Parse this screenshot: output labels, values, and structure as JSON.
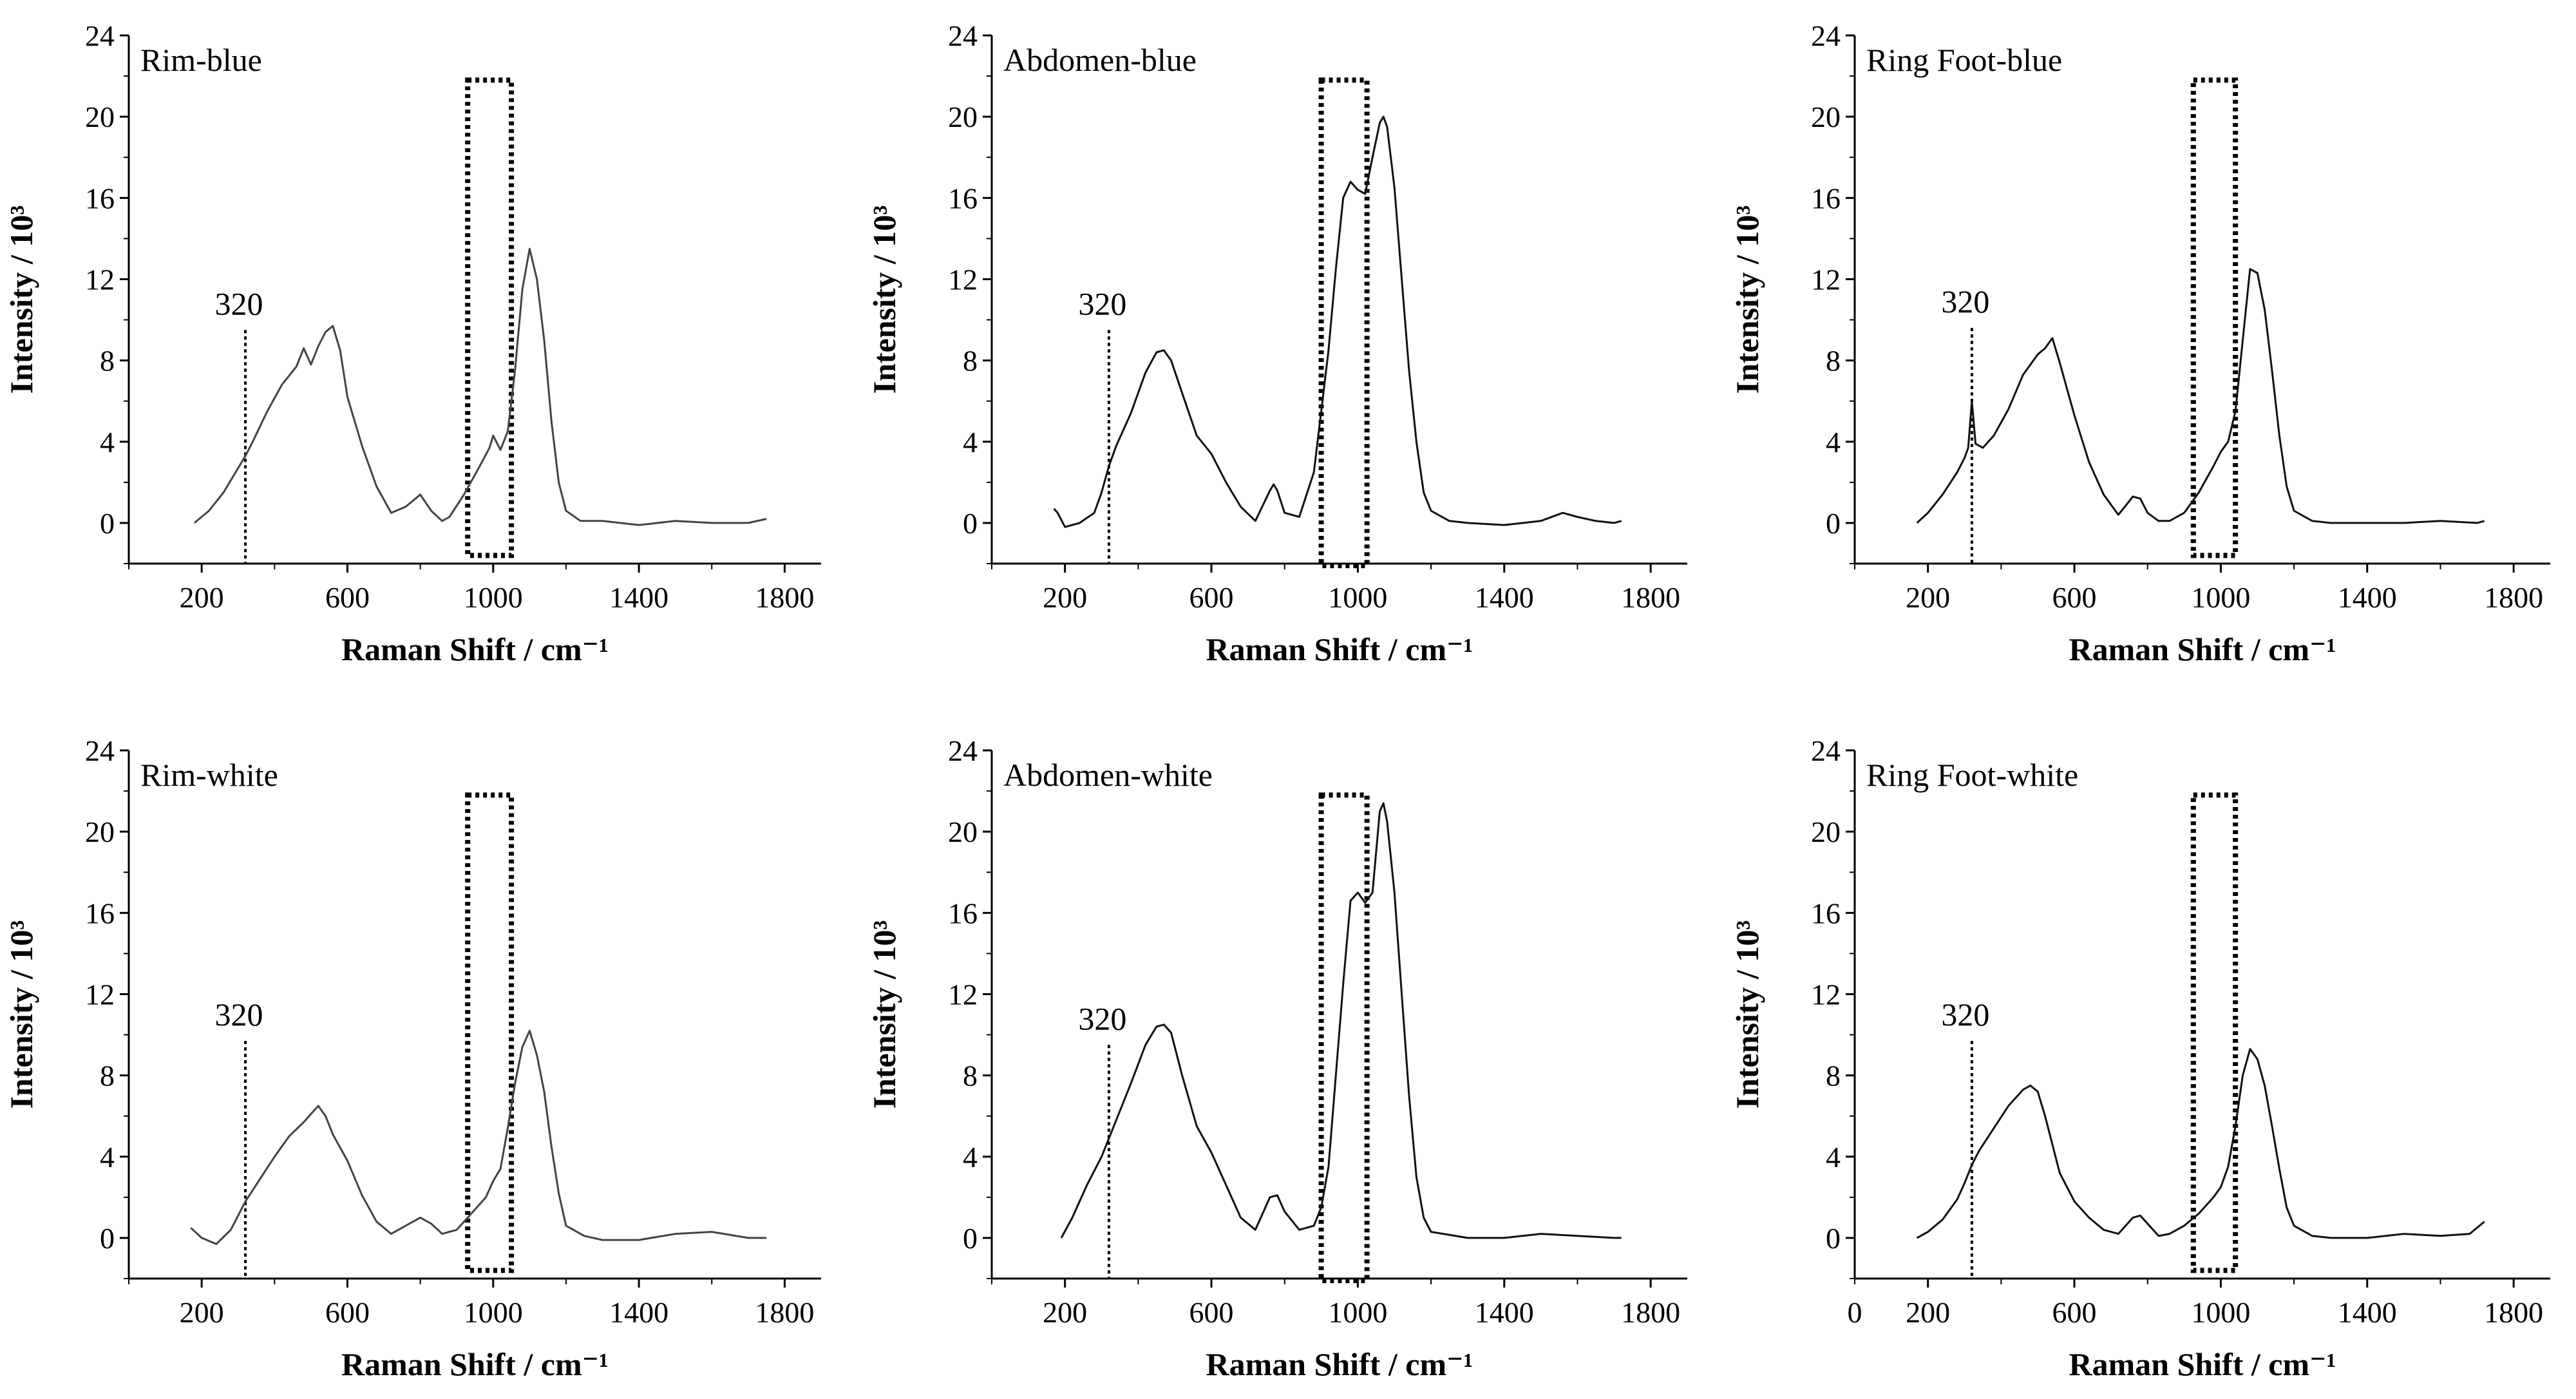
{
  "chart_data": [
    {
      "type": "line",
      "title": "Rim-blue",
      "xlabel": "Raman Shift / cm⁻¹",
      "ylabel": "Intensity / 10³",
      "xlim": [
        0,
        1900
      ],
      "ylim": [
        -2,
        24
      ],
      "x_ticks": [
        200,
        600,
        1000,
        1400,
        1800
      ],
      "y_ticks": [
        0,
        4,
        8,
        12,
        16,
        20,
        24
      ],
      "annotation_line": {
        "x": 320,
        "label": "320",
        "ymax": 9.5
      },
      "highlight_box": {
        "x": [
          930,
          1050
        ],
        "y": [
          -1.6,
          21.8
        ]
      },
      "series": [
        {
          "x": [
            180,
            220,
            260,
            300,
            320,
            340,
            380,
            420,
            460,
            480,
            490,
            500,
            520,
            540,
            560,
            580,
            600,
            640,
            680,
            720,
            760,
            800,
            830,
            860,
            880,
            920,
            960,
            990,
            1000,
            1020,
            1040,
            1060,
            1080,
            1100,
            1120,
            1140,
            1160,
            1180,
            1200,
            1240,
            1300,
            1400,
            1500,
            1600,
            1700,
            1750
          ],
          "y": [
            0,
            0.6,
            1.5,
            2.7,
            3.3,
            4,
            5.5,
            6.8,
            7.7,
            8.6,
            8.2,
            7.8,
            8.7,
            9.4,
            9.7,
            8.5,
            6.2,
            3.8,
            1.8,
            0.5,
            0.8,
            1.4,
            0.6,
            0.1,
            0.3,
            1.4,
            2.7,
            3.7,
            4.3,
            3.6,
            4.5,
            7.5,
            11.5,
            13.5,
            12,
            9,
            5,
            2,
            0.6,
            0.1,
            0.1,
            -0.1,
            0.1,
            0,
            0,
            0.2
          ]
        }
      ]
    },
    {
      "type": "line",
      "title": "Abdomen-blue",
      "xlabel": "Raman Shift / cm⁻¹",
      "ylabel": "Intensity / 10³",
      "xlim": [
        0,
        1900
      ],
      "ylim": [
        -2,
        24
      ],
      "x_ticks": [
        200,
        600,
        1000,
        1400,
        1800
      ],
      "y_ticks": [
        0,
        4,
        8,
        12,
        16,
        20,
        24
      ],
      "annotation_line": {
        "x": 320,
        "label": "320",
        "ymax": 9.5
      },
      "highlight_box": {
        "x": [
          900,
          1025
        ],
        "y": [
          -2.1,
          21.8
        ]
      },
      "series": [
        {
          "x": [
            170,
            180,
            200,
            240,
            280,
            300,
            320,
            340,
            380,
            420,
            450,
            470,
            490,
            520,
            560,
            600,
            640,
            680,
            720,
            760,
            770,
            780,
            800,
            840,
            880,
            900,
            920,
            940,
            960,
            980,
            1000,
            1020,
            1040,
            1060,
            1070,
            1080,
            1100,
            1120,
            1140,
            1160,
            1180,
            1200,
            1250,
            1300,
            1400,
            1500,
            1560,
            1600,
            1650,
            1700,
            1720
          ],
          "y": [
            0.7,
            0.5,
            -0.2,
            0,
            0.5,
            1.5,
            2.8,
            3.8,
            5.4,
            7.4,
            8.4,
            8.5,
            8,
            6.4,
            4.3,
            3.4,
            2,
            0.8,
            0.1,
            1.6,
            1.9,
            1.6,
            0.5,
            0.3,
            2.5,
            5.5,
            8.5,
            12.5,
            16,
            16.8,
            16.4,
            16.2,
            18,
            19.7,
            20,
            19.5,
            16.5,
            12,
            7.5,
            4,
            1.5,
            0.6,
            0.1,
            0,
            -0.1,
            0.1,
            0.5,
            0.3,
            0.1,
            0,
            0.1
          ]
        }
      ]
    },
    {
      "type": "line",
      "title": "Ring Foot-blue",
      "xlabel": "Raman Shift / cm⁻¹",
      "ylabel": "Intensity / 10³",
      "xlim": [
        0,
        1900
      ],
      "ylim": [
        -2,
        24
      ],
      "x_ticks": [
        200,
        600,
        1000,
        1400,
        1800
      ],
      "y_ticks": [
        0,
        4,
        8,
        12,
        16,
        20,
        24
      ],
      "annotation_line": {
        "x": 320,
        "label": "320",
        "ymax": 9.6
      },
      "highlight_box": {
        "x": [
          925,
          1040
        ],
        "y": [
          -1.6,
          21.8
        ]
      },
      "series": [
        {
          "x": [
            170,
            200,
            240,
            280,
            300,
            310,
            320,
            330,
            350,
            380,
            420,
            460,
            500,
            520,
            540,
            560,
            600,
            640,
            680,
            720,
            760,
            780,
            800,
            830,
            860,
            900,
            940,
            980,
            1000,
            1020,
            1040,
            1060,
            1080,
            1100,
            1120,
            1140,
            1160,
            1180,
            1200,
            1250,
            1300,
            1400,
            1500,
            1600,
            1700,
            1720
          ],
          "y": [
            0,
            0.5,
            1.4,
            2.5,
            3.2,
            3.7,
            6,
            3.9,
            3.7,
            4.3,
            5.6,
            7.3,
            8.3,
            8.6,
            9.1,
            7.9,
            5.3,
            3,
            1.4,
            0.4,
            1.3,
            1.2,
            0.5,
            0.1,
            0.1,
            0.5,
            1.5,
            2.8,
            3.5,
            4,
            5.5,
            9,
            12.5,
            12.3,
            10.5,
            7.5,
            4.3,
            1.8,
            0.6,
            0.1,
            0,
            0,
            0,
            0.1,
            0,
            0.1
          ]
        }
      ]
    },
    {
      "type": "line",
      "title": "Rim-white",
      "xlabel": "Raman Shift / cm⁻¹",
      "ylabel": "Intensity / 10³",
      "xlim": [
        0,
        1900
      ],
      "ylim": [
        -2,
        24
      ],
      "x_ticks": [
        200,
        600,
        1000,
        1400,
        1800
      ],
      "y_ticks": [
        0,
        4,
        8,
        12,
        16,
        20,
        24
      ],
      "annotation_line": {
        "x": 320,
        "label": "320",
        "ymax": 9.7
      },
      "highlight_box": {
        "x": [
          930,
          1050
        ],
        "y": [
          -1.6,
          21.8
        ]
      },
      "series": [
        {
          "x": [
            170,
            200,
            240,
            280,
            320,
            360,
            400,
            440,
            480,
            500,
            520,
            540,
            560,
            600,
            640,
            680,
            720,
            760,
            800,
            830,
            860,
            900,
            940,
            980,
            1000,
            1020,
            1040,
            1060,
            1080,
            1100,
            1120,
            1140,
            1160,
            1180,
            1200,
            1250,
            1300,
            1400,
            1500,
            1600,
            1700,
            1750
          ],
          "y": [
            0.5,
            0,
            -0.3,
            0.4,
            1.8,
            2.9,
            4,
            5,
            5.7,
            6.1,
            6.5,
            6,
            5.1,
            3.8,
            2.1,
            0.8,
            0.2,
            0.6,
            1,
            0.7,
            0.2,
            0.4,
            1.2,
            2,
            2.8,
            3.4,
            5.4,
            7.6,
            9.4,
            10.2,
            9,
            7.2,
            4.5,
            2.2,
            0.6,
            0.1,
            -0.1,
            -0.1,
            0.2,
            0.3,
            0,
            0
          ]
        }
      ]
    },
    {
      "type": "line",
      "title": "Abdomen-white",
      "xlabel": "Raman Shift / cm⁻¹",
      "ylabel": "Intensity / 10³",
      "xlim": [
        0,
        1900
      ],
      "ylim": [
        -2,
        24
      ],
      "x_ticks": [
        200,
        600,
        1000,
        1400,
        1800
      ],
      "y_ticks": [
        0,
        4,
        8,
        12,
        16,
        20,
        24
      ],
      "annotation_line": {
        "x": 320,
        "label": "320",
        "ymax": 9.5
      },
      "highlight_box": {
        "x": [
          900,
          1025
        ],
        "y": [
          -2.1,
          21.8
        ]
      },
      "series": [
        {
          "x": [
            190,
            220,
            260,
            300,
            320,
            340,
            380,
            420,
            450,
            470,
            490,
            520,
            560,
            600,
            640,
            680,
            720,
            760,
            780,
            800,
            840,
            880,
            900,
            920,
            940,
            960,
            980,
            1000,
            1020,
            1040,
            1060,
            1070,
            1080,
            1100,
            1120,
            1140,
            1160,
            1180,
            1200,
            1300,
            1400,
            1500,
            1600,
            1700,
            1720
          ],
          "y": [
            0,
            1,
            2.6,
            4,
            4.9,
            5.8,
            7.6,
            9.5,
            10.4,
            10.5,
            10.1,
            8,
            5.5,
            4.2,
            2.6,
            1,
            0.4,
            2,
            2.1,
            1.3,
            0.4,
            0.6,
            1.5,
            3.5,
            8,
            12.5,
            16.6,
            17,
            16.5,
            17,
            21,
            21.4,
            20.5,
            17,
            12,
            7,
            3,
            1,
            0.3,
            0,
            0,
            0.2,
            0.1,
            0,
            0
          ]
        }
      ]
    },
    {
      "type": "line",
      "title": "Ring Foot-white",
      "xlabel": "Raman Shift / cm⁻¹",
      "ylabel": "Intensity / 10³",
      "xlim": [
        0,
        1900
      ],
      "ylim": [
        -2,
        24
      ],
      "x_ticks": [
        0,
        200,
        600,
        1000,
        1400,
        1800
      ],
      "y_ticks": [
        0,
        4,
        8,
        12,
        16,
        20,
        24
      ],
      "annotation_line": {
        "x": 320,
        "label": "320",
        "ymax": 9.7
      },
      "highlight_box": {
        "x": [
          925,
          1040
        ],
        "y": [
          -1.6,
          21.8
        ]
      },
      "series": [
        {
          "x": [
            170,
            200,
            240,
            280,
            300,
            320,
            340,
            380,
            420,
            460,
            480,
            500,
            520,
            560,
            600,
            640,
            680,
            720,
            760,
            780,
            800,
            830,
            860,
            900,
            940,
            980,
            1000,
            1020,
            1040,
            1060,
            1080,
            1100,
            1120,
            1140,
            1160,
            1180,
            1200,
            1250,
            1300,
            1400,
            1500,
            1600,
            1680,
            1720
          ],
          "y": [
            0,
            0.3,
            0.9,
            1.9,
            2.7,
            3.6,
            4.3,
            5.4,
            6.5,
            7.3,
            7.5,
            7.2,
            6,
            3.2,
            1.8,
            1,
            0.4,
            0.2,
            1,
            1.1,
            0.7,
            0.1,
            0.2,
            0.6,
            1.2,
            2,
            2.5,
            3.5,
            5.5,
            8,
            9.3,
            8.8,
            7.5,
            5.5,
            3.4,
            1.5,
            0.6,
            0.1,
            0,
            0,
            0.2,
            0.1,
            0.2,
            0.8
          ]
        }
      ]
    }
  ]
}
